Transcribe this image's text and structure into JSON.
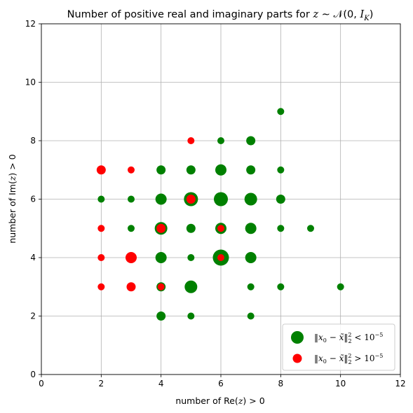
{
  "chart_data": {
    "type": "scatter",
    "title": "Number of positive real and imaginary parts for z ∼ 𝒩(0, I_K)",
    "xlabel": "number of Re(z) > 0",
    "ylabel": "number of Im(z) > 0",
    "xlim": [
      0,
      12
    ],
    "ylim": [
      0,
      12
    ],
    "xticks": [
      "0",
      "2",
      "4",
      "6",
      "8",
      "10",
      "12"
    ],
    "yticks": [
      "0",
      "2",
      "4",
      "6",
      "8",
      "10",
      "12"
    ],
    "grid": true,
    "legend_position": "bottom-right",
    "series": [
      {
        "name": "‖x₀ − x̃‖₂² < 10⁻⁵",
        "color": "#008000",
        "points": [
          {
            "x": 2,
            "y": 6,
            "size": 1
          },
          {
            "x": 3,
            "y": 6,
            "size": 1
          },
          {
            "x": 3,
            "y": 5,
            "size": 1
          },
          {
            "x": 4,
            "y": 7,
            "size": 2
          },
          {
            "x": 4,
            "y": 6,
            "size": 3
          },
          {
            "x": 4,
            "y": 5,
            "size": 4
          },
          {
            "x": 4,
            "y": 4,
            "size": 3
          },
          {
            "x": 4,
            "y": 3,
            "size": 2
          },
          {
            "x": 4,
            "y": 2,
            "size": 2
          },
          {
            "x": 5,
            "y": 7,
            "size": 2
          },
          {
            "x": 5,
            "y": 6,
            "size": 5
          },
          {
            "x": 5,
            "y": 5,
            "size": 2
          },
          {
            "x": 5,
            "y": 4,
            "size": 1
          },
          {
            "x": 5,
            "y": 3,
            "size": 4
          },
          {
            "x": 5,
            "y": 2,
            "size": 1
          },
          {
            "x": 6,
            "y": 8,
            "size": 1
          },
          {
            "x": 6,
            "y": 7,
            "size": 3
          },
          {
            "x": 6,
            "y": 6,
            "size": 5
          },
          {
            "x": 6,
            "y": 5,
            "size": 3
          },
          {
            "x": 6,
            "y": 4,
            "size": 6
          },
          {
            "x": 7,
            "y": 8,
            "size": 2
          },
          {
            "x": 7,
            "y": 7,
            "size": 2
          },
          {
            "x": 7,
            "y": 6,
            "size": 4
          },
          {
            "x": 7,
            "y": 5,
            "size": 3
          },
          {
            "x": 7,
            "y": 4,
            "size": 3
          },
          {
            "x": 7,
            "y": 3,
            "size": 1
          },
          {
            "x": 7,
            "y": 2,
            "size": 1
          },
          {
            "x": 8,
            "y": 9,
            "size": 1
          },
          {
            "x": 8,
            "y": 7,
            "size": 1
          },
          {
            "x": 8,
            "y": 6,
            "size": 2
          },
          {
            "x": 8,
            "y": 5,
            "size": 1
          },
          {
            "x": 8,
            "y": 3,
            "size": 1
          },
          {
            "x": 9,
            "y": 5,
            "size": 1
          },
          {
            "x": 10,
            "y": 3,
            "size": 1
          }
        ]
      },
      {
        "name": "‖x₀ − x̃‖₂² > 10⁻⁵",
        "color": "#ff0000",
        "points": [
          {
            "x": 2,
            "y": 7,
            "size": 2
          },
          {
            "x": 2,
            "y": 5,
            "size": 1
          },
          {
            "x": 2,
            "y": 4,
            "size": 1
          },
          {
            "x": 2,
            "y": 3,
            "size": 1
          },
          {
            "x": 3,
            "y": 7,
            "size": 1
          },
          {
            "x": 3,
            "y": 4,
            "size": 3
          },
          {
            "x": 3,
            "y": 3,
            "size": 2
          },
          {
            "x": 4,
            "y": 5,
            "size": 2
          },
          {
            "x": 4,
            "y": 3,
            "size": 1
          },
          {
            "x": 5,
            "y": 8,
            "size": 1
          },
          {
            "x": 5,
            "y": 6,
            "size": 2
          },
          {
            "x": 6,
            "y": 5,
            "size": 1
          },
          {
            "x": 6,
            "y": 4,
            "size": 1
          }
        ]
      }
    ]
  }
}
